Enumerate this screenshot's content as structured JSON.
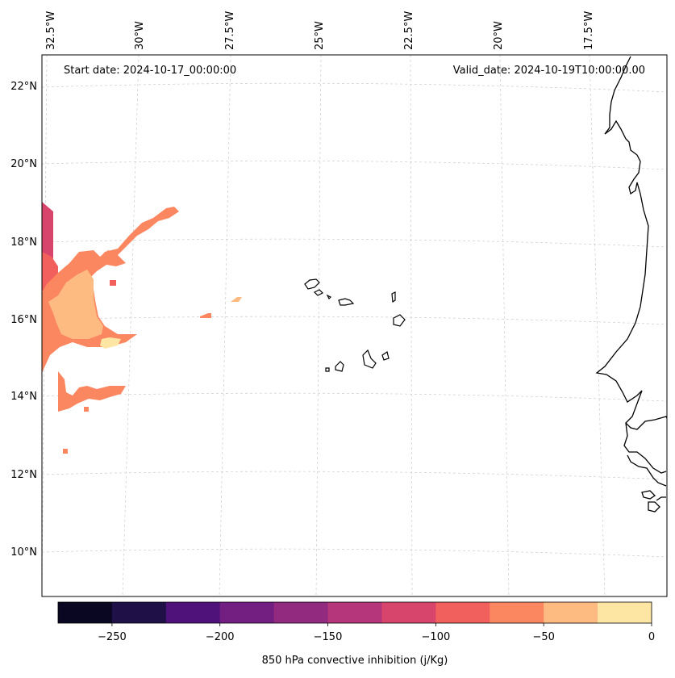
{
  "map": {
    "start_label": "Start date: 2024-10-17_00:00:00",
    "valid_label": "Valid_date: 2024-10-19T10:00:00.00",
    "lon_labels": [
      "32.5°W",
      "30°W",
      "27.5°W",
      "25°W",
      "22.5°W",
      "20°W",
      "17.5°W"
    ],
    "lat_labels": [
      "22°N",
      "20°N",
      "18°N",
      "16°N",
      "14°N",
      "12°N",
      "10°N"
    ]
  },
  "colorbar": {
    "title": "850 hPa convective inhibition (j/Kg)",
    "tick_labels": [
      "−250",
      "−200",
      "−150",
      "−100",
      "−50",
      "0"
    ],
    "levels": [
      -275,
      -250,
      -225,
      -200,
      -175,
      -150,
      -125,
      -100,
      -75,
      -50,
      -25,
      0
    ],
    "colors": [
      "#0a0722",
      "#1f1147",
      "#4f127b",
      "#721f81",
      "#922b80",
      "#b5367a",
      "#d8456c",
      "#f1605d",
      "#fb8761",
      "#febb81",
      "#fde6a4"
    ]
  }
}
